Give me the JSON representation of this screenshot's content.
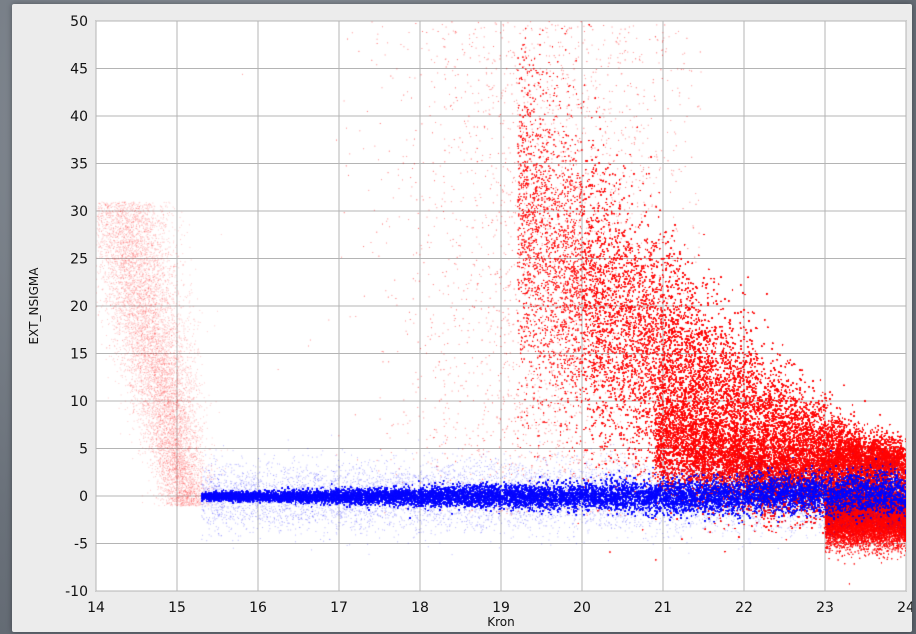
{
  "chart_data": {
    "type": "scatter",
    "title": "",
    "xlabel": "Kron",
    "ylabel": "EXT_NSIGMA",
    "xlim": [
      14,
      24
    ],
    "ylim": [
      -10,
      50
    ],
    "x_ticks": [
      14,
      15,
      16,
      17,
      18,
      19,
      20,
      21,
      22,
      23,
      24
    ],
    "y_ticks": [
      -10,
      -5,
      0,
      5,
      10,
      15,
      20,
      25,
      30,
      35,
      40,
      45,
      50
    ],
    "grid": true,
    "legend": "none",
    "series": [
      {
        "color": "#ff0000",
        "style": "density",
        "x": [
          14.3,
          14.6,
          14.8,
          15.0,
          15.1,
          15.2,
          15.3,
          16.5,
          17.5,
          18.5,
          19.0,
          19.5,
          20.0,
          20.3,
          20.6,
          20.9,
          21.2,
          21.5,
          21.8,
          22.1,
          22.4,
          22.7,
          23.0,
          23.3,
          23.6,
          23.9
        ],
        "y": [
          30,
          24,
          16,
          9,
          3,
          0,
          0,
          9,
          14,
          22,
          28,
          25,
          22,
          20,
          18,
          15,
          12,
          9,
          7,
          5,
          4,
          3,
          2,
          1,
          0,
          -1
        ]
      },
      {
        "color": "#0000ff",
        "style": "density",
        "x": [
          15.3,
          16,
          17,
          18,
          19,
          20,
          21,
          22,
          22.5,
          23,
          23.5,
          24
        ],
        "y": [
          0,
          0,
          0,
          0,
          0,
          0.1,
          0.2,
          0.3,
          0.4,
          0.3,
          0,
          -0.8
        ]
      }
    ]
  }
}
